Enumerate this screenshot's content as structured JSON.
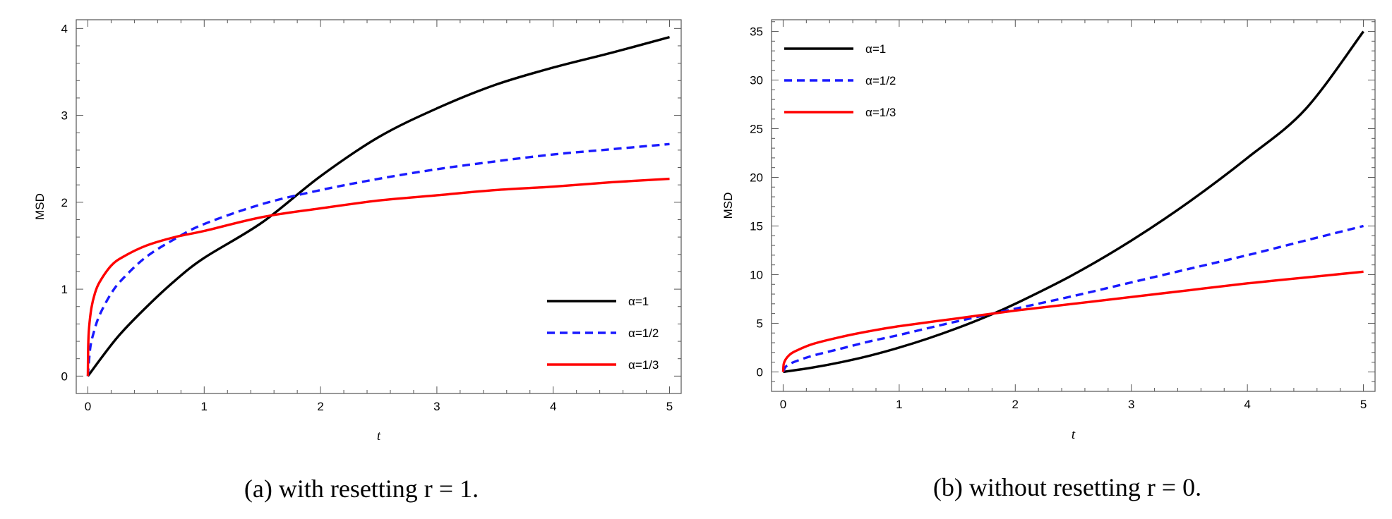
{
  "chart_data": [
    {
      "type": "line",
      "caption": "(a) with resetting r = 1.",
      "xlabel": "t",
      "ylabel": "MSD",
      "xlim": [
        -0.1,
        5.1
      ],
      "ylim": [
        -0.2,
        4.1
      ],
      "xticks": [
        0,
        1,
        2,
        3,
        4,
        5
      ],
      "yticks": [
        0,
        1,
        2,
        3,
        4
      ],
      "legend_position": "bottom-right",
      "series": [
        {
          "name": "α=1",
          "color": "#000000",
          "dash": "solid",
          "x": [
            0,
            0.25,
            0.5,
            0.75,
            1,
            1.5,
            2,
            2.5,
            3,
            3.5,
            4,
            4.5,
            5
          ],
          "y": [
            0,
            0.44,
            0.79,
            1.1,
            1.36,
            1.77,
            2.3,
            2.75,
            3.08,
            3.35,
            3.55,
            3.72,
            3.9
          ]
        },
        {
          "name": "α=1/2",
          "color": "#1a1aff",
          "dash": "dashed",
          "x": [
            0,
            0.02,
            0.05,
            0.1,
            0.2,
            0.3,
            0.5,
            0.75,
            1,
            1.5,
            2,
            2.5,
            3,
            3.5,
            4,
            4.5,
            5
          ],
          "y": [
            0,
            0.32,
            0.5,
            0.7,
            0.95,
            1.12,
            1.37,
            1.58,
            1.75,
            1.98,
            2.14,
            2.27,
            2.38,
            2.47,
            2.55,
            2.61,
            2.67
          ]
        },
        {
          "name": "α=1/3",
          "color": "#ff0000",
          "dash": "solid",
          "x": [
            0,
            0.003,
            0.01,
            0.03,
            0.06,
            0.1,
            0.2,
            0.3,
            0.5,
            0.75,
            1,
            1.5,
            2,
            2.5,
            3,
            3.5,
            4,
            4.5,
            5
          ],
          "y": [
            0,
            0.35,
            0.55,
            0.78,
            0.95,
            1.08,
            1.27,
            1.37,
            1.5,
            1.6,
            1.67,
            1.83,
            1.93,
            2.02,
            2.08,
            2.14,
            2.18,
            2.23,
            2.27
          ]
        }
      ]
    },
    {
      "type": "line",
      "caption": "(b) without resetting r = 0.",
      "xlabel": "t",
      "ylabel": "MSD",
      "xlim": [
        -0.1,
        5.1
      ],
      "ylim": [
        -2,
        36.2
      ],
      "xticks": [
        0,
        1,
        2,
        3,
        4,
        5
      ],
      "yticks": [
        0,
        5,
        10,
        15,
        20,
        25,
        30,
        35
      ],
      "legend_position": "top-left",
      "series": [
        {
          "name": "α=1",
          "color": "#000000",
          "dash": "solid",
          "x": [
            0,
            0.25,
            0.5,
            0.75,
            1,
            1.25,
            1.5,
            1.75,
            2,
            2.5,
            3,
            3.5,
            4,
            4.5,
            5
          ],
          "y": [
            0,
            0.44,
            1.0,
            1.68,
            2.5,
            3.44,
            4.5,
            5.68,
            7.0,
            10.0,
            13.5,
            17.5,
            22.0,
            27.0,
            35.0
          ]
        },
        {
          "name": "α=1/2",
          "color": "#1a1aff",
          "dash": "dashed",
          "x": [
            0,
            0.02,
            0.05,
            0.1,
            0.25,
            0.5,
            0.75,
            1,
            1.5,
            2,
            2.5,
            3,
            3.5,
            4,
            4.5,
            5
          ],
          "y": [
            0,
            0.5,
            0.75,
            1.05,
            1.65,
            2.4,
            3.15,
            3.8,
            5.2,
            6.5,
            7.8,
            9.2,
            10.6,
            12.0,
            13.5,
            15.0
          ]
        },
        {
          "name": "α=1/3",
          "color": "#ff0000",
          "dash": "solid",
          "x": [
            0,
            0.005,
            0.02,
            0.05,
            0.1,
            0.25,
            0.5,
            0.75,
            1,
            1.5,
            2,
            2.5,
            3,
            3.5,
            4,
            4.5,
            5
          ],
          "y": [
            0,
            0.8,
            1.25,
            1.7,
            2.1,
            2.85,
            3.6,
            4.2,
            4.7,
            5.5,
            6.3,
            7.0,
            7.7,
            8.4,
            9.1,
            9.7,
            10.3
          ]
        }
      ]
    }
  ]
}
